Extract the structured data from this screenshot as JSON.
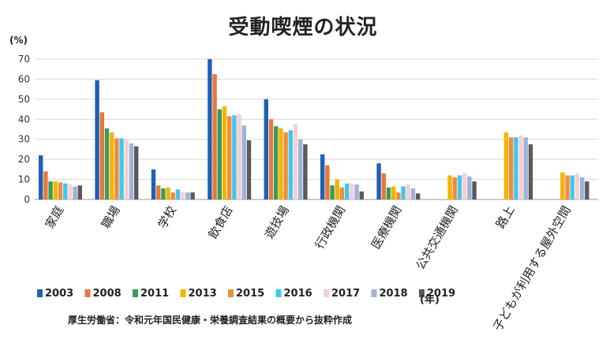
{
  "chart_data": {
    "type": "bar",
    "title": "受動喫煙の状況",
    "ylabel": "(%)",
    "ylim": [
      0,
      70
    ],
    "yticks": [
      0,
      10,
      20,
      30,
      40,
      50,
      60,
      70
    ],
    "grid": true,
    "legend_position": "bottom",
    "legend_suffix": "(年)",
    "source": "厚生労働省：令和元年国民健康・栄養調査結果の概要から抜粋作成",
    "categories": [
      "家庭",
      "職場",
      "学校",
      "飲食店",
      "遊技場",
      "行政機関",
      "医療機関",
      "公共交通機関",
      "路上",
      "子どもが利用する屋外空間"
    ],
    "series": [
      {
        "name": "2003",
        "color": "#1f5fb4",
        "values": [
          22,
          59.5,
          15,
          70,
          50,
          22.5,
          18,
          null,
          null,
          null
        ]
      },
      {
        "name": "2008",
        "color": "#e8783a",
        "values": [
          14,
          43.5,
          7,
          62.5,
          40,
          17,
          13,
          null,
          null,
          null
        ]
      },
      {
        "name": "2011",
        "color": "#3a9a5a",
        "values": [
          9,
          35.5,
          5.5,
          45,
          36.5,
          7,
          6,
          null,
          null,
          null
        ]
      },
      {
        "name": "2013",
        "color": "#f4b400",
        "values": [
          9,
          33.5,
          6,
          46.5,
          35.5,
          10,
          6.5,
          12,
          33.5,
          13.5
        ]
      },
      {
        "name": "2015",
        "color": "#f08c3c",
        "values": [
          8.5,
          30.5,
          3.5,
          41.5,
          33.5,
          6,
          3.5,
          11,
          31,
          12
        ]
      },
      {
        "name": "2016",
        "color": "#44c6ec",
        "values": [
          8,
          30.5,
          5,
          42,
          34.5,
          8,
          6.5,
          12,
          31,
          12
        ]
      },
      {
        "name": "2017",
        "color": "#f7cfd3",
        "values": [
          7.5,
          30,
          3.5,
          42.5,
          37.5,
          8,
          7.5,
          13,
          32,
          13
        ]
      },
      {
        "name": "2018",
        "color": "#9db3d9",
        "values": [
          6.5,
          28,
          3.5,
          37,
          30,
          7.5,
          5.5,
          11.5,
          31,
          11
        ]
      },
      {
        "name": "2019",
        "color": "#5a5a5a",
        "values": [
          7,
          26.5,
          3.5,
          29.5,
          27.5,
          4,
          3,
          9,
          27.5,
          9
        ]
      }
    ]
  }
}
